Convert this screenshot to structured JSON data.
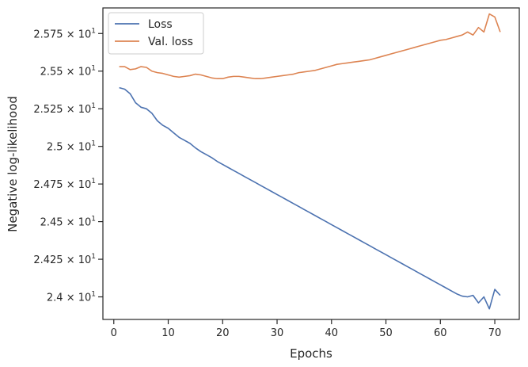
{
  "chart_data": {
    "type": "line",
    "title": "",
    "xlabel": "Epochs",
    "ylabel": "Negative log-likelihood",
    "xlim": [
      -2,
      74.5
    ],
    "ylim": [
      23.85,
      25.92
    ],
    "xticks": [
      0,
      10,
      20,
      30,
      40,
      50,
      60,
      70
    ],
    "xtick_labels": [
      "0",
      "10",
      "20",
      "30",
      "40",
      "50",
      "60",
      "70"
    ],
    "yticks": [
      24.0,
      24.25,
      24.5,
      24.75,
      25.0,
      25.25,
      25.5,
      25.75
    ],
    "ytick_labels": [
      {
        "mantissa": "2.4",
        "exp": "1"
      },
      {
        "mantissa": "2.425",
        "exp": "1"
      },
      {
        "mantissa": "2.45",
        "exp": "1"
      },
      {
        "mantissa": "2.475",
        "exp": "1"
      },
      {
        "mantissa": "2.5",
        "exp": "1"
      },
      {
        "mantissa": "2.525",
        "exp": "1"
      },
      {
        "mantissa": "2.55",
        "exp": "1"
      },
      {
        "mantissa": "2.575",
        "exp": "1"
      }
    ],
    "grid": false,
    "legend_position": "top-left",
    "series": [
      {
        "name": "Loss",
        "color": "#4c72b0",
        "x": [
          1,
          2,
          3,
          4,
          5,
          6,
          7,
          8,
          9,
          10,
          11,
          12,
          13,
          14,
          15,
          16,
          17,
          18,
          19,
          20,
          21,
          22,
          23,
          24,
          25,
          26,
          27,
          28,
          29,
          30,
          31,
          32,
          33,
          34,
          35,
          36,
          37,
          38,
          39,
          40,
          41,
          42,
          43,
          44,
          45,
          46,
          47,
          48,
          49,
          50,
          51,
          52,
          53,
          54,
          55,
          56,
          57,
          58,
          59,
          60,
          61,
          62,
          63,
          64,
          65,
          66,
          67,
          68,
          69,
          70,
          71
        ],
        "values": [
          25.39,
          25.38,
          25.35,
          25.29,
          25.26,
          25.25,
          25.22,
          25.17,
          25.14,
          25.12,
          25.09,
          25.06,
          25.04,
          25.02,
          24.99,
          24.965,
          24.945,
          24.925,
          24.9,
          24.88,
          24.86,
          24.84,
          24.82,
          24.8,
          24.78,
          24.76,
          24.74,
          24.72,
          24.7,
          24.68,
          24.66,
          24.64,
          24.62,
          24.6,
          24.58,
          24.56,
          24.54,
          24.52,
          24.5,
          24.48,
          24.46,
          24.44,
          24.42,
          24.4,
          24.38,
          24.36,
          24.34,
          24.32,
          24.3,
          24.28,
          24.26,
          24.24,
          24.22,
          24.2,
          24.18,
          24.16,
          24.14,
          24.12,
          24.1,
          24.08,
          24.06,
          24.04,
          24.02,
          24.005,
          24.0,
          24.01,
          23.96,
          24.0,
          23.92,
          24.05,
          24.01
        ]
      },
      {
        "name": "Val. loss",
        "color": "#dd8452",
        "x": [
          1,
          2,
          3,
          4,
          5,
          6,
          7,
          8,
          9,
          10,
          11,
          12,
          13,
          14,
          15,
          16,
          17,
          18,
          19,
          20,
          21,
          22,
          23,
          24,
          25,
          26,
          27,
          28,
          29,
          30,
          31,
          32,
          33,
          34,
          35,
          36,
          37,
          38,
          39,
          40,
          41,
          42,
          43,
          44,
          45,
          46,
          47,
          48,
          49,
          50,
          51,
          52,
          53,
          54,
          55,
          56,
          57,
          58,
          59,
          60,
          61,
          62,
          63,
          64,
          65,
          66,
          67,
          68,
          69,
          70,
          71
        ],
        "values": [
          25.53,
          25.53,
          25.51,
          25.515,
          25.53,
          25.525,
          25.5,
          25.49,
          25.485,
          25.475,
          25.465,
          25.46,
          25.465,
          25.47,
          25.48,
          25.475,
          25.465,
          25.455,
          25.45,
          25.45,
          25.46,
          25.465,
          25.465,
          25.46,
          25.455,
          25.45,
          25.45,
          25.455,
          25.46,
          25.465,
          25.47,
          25.475,
          25.48,
          25.49,
          25.495,
          25.5,
          25.505,
          25.515,
          25.525,
          25.535,
          25.545,
          25.55,
          25.555,
          25.56,
          25.565,
          25.57,
          25.575,
          25.585,
          25.595,
          25.605,
          25.615,
          25.625,
          25.635,
          25.645,
          25.655,
          25.665,
          25.675,
          25.685,
          25.695,
          25.705,
          25.71,
          25.72,
          25.73,
          25.74,
          25.76,
          25.74,
          25.79,
          25.76,
          25.88,
          25.86,
          25.76
        ]
      }
    ]
  }
}
